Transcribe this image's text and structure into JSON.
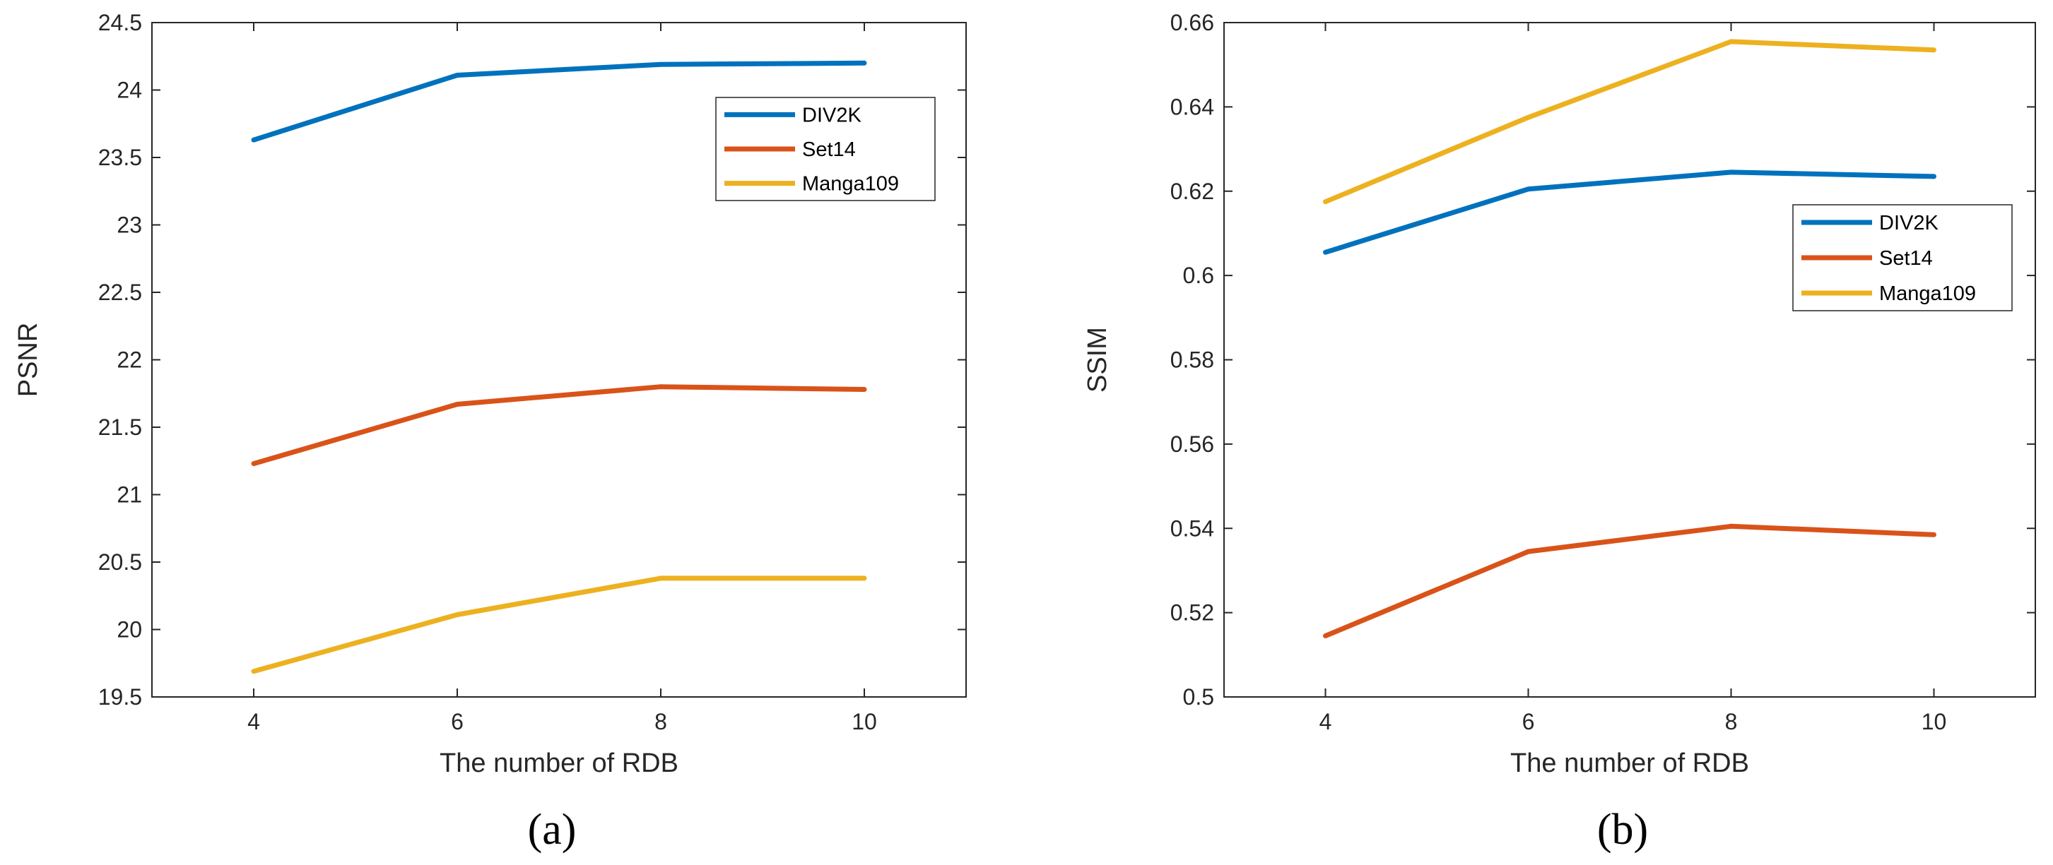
{
  "chart_data": [
    {
      "type": "line",
      "caption": "(a)",
      "title": "",
      "xlabel": "The number of RDB",
      "ylabel": "PSNR",
      "x": [
        4,
        6,
        8,
        10
      ],
      "xticks": [
        "4",
        "6",
        "8",
        "10"
      ],
      "xlim": [
        3,
        11
      ],
      "ylim": [
        19.5,
        24.5
      ],
      "yticks": [
        "19.5",
        "20",
        "20.5",
        "21",
        "21.5",
        "22",
        "22.5",
        "23",
        "23.5",
        "24",
        "24.5"
      ],
      "legend_position": "top-right",
      "series": [
        {
          "name": "DIV2K",
          "color": "#0072BD",
          "values": [
            23.63,
            24.11,
            24.19,
            24.2
          ]
        },
        {
          "name": "Set14",
          "color": "#D95319",
          "values": [
            21.23,
            21.67,
            21.8,
            21.78
          ]
        },
        {
          "name": "Manga109",
          "color": "#EDB120",
          "values": [
            19.69,
            20.11,
            20.38,
            20.38
          ]
        }
      ]
    },
    {
      "type": "line",
      "caption": "(b)",
      "title": "",
      "xlabel": "The number of RDB",
      "ylabel": "SSIM",
      "x": [
        4,
        6,
        8,
        10
      ],
      "xticks": [
        "4",
        "6",
        "8",
        "10"
      ],
      "xlim": [
        3,
        11
      ],
      "ylim": [
        0.5,
        0.66
      ],
      "yticks": [
        "0.5",
        "0.52",
        "0.54",
        "0.56",
        "0.58",
        "0.6",
        "0.62",
        "0.64",
        "0.66"
      ],
      "legend_position": "right",
      "series": [
        {
          "name": "DIV2K",
          "color": "#0072BD",
          "values": [
            0.6055,
            0.6205,
            0.6245,
            0.6235
          ]
        },
        {
          "name": "Set14",
          "color": "#D95319",
          "values": [
            0.5145,
            0.5345,
            0.5405,
            0.5385
          ]
        },
        {
          "name": "Manga109",
          "color": "#EDB120",
          "values": [
            0.6175,
            0.6375,
            0.6555,
            0.6535
          ]
        }
      ]
    }
  ]
}
